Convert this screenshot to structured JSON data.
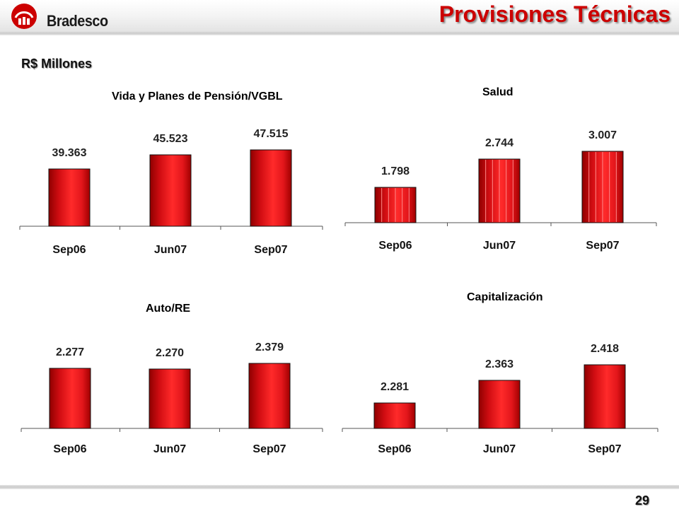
{
  "header": {
    "brand": "Bradesco",
    "title": "Provisiones Técnicas",
    "units": "R$ Millones"
  },
  "footer": {
    "page_number": "29"
  },
  "colors": {
    "bar": "#e3161b",
    "bar_dark": "#a00000",
    "title": "#cc0000"
  },
  "chart_data": [
    {
      "type": "bar",
      "title": "Vida y Planes de Pensión/VGBL",
      "categories": [
        "Sep06",
        "Jun07",
        "Sep07"
      ],
      "values": [
        39363,
        45523,
        47515
      ],
      "value_labels": [
        "39.363",
        "45.523",
        "47.515"
      ],
      "style": "plain",
      "grid": false
    },
    {
      "type": "bar",
      "title": "Salud",
      "categories": [
        "Sep06",
        "Jun07",
        "Sep07"
      ],
      "values": [
        1798,
        2744,
        3007
      ],
      "value_labels": [
        "1.798",
        "2.744",
        "3.007"
      ],
      "style": "striped",
      "grid": false
    },
    {
      "type": "bar",
      "title": "Auto/RE",
      "categories": [
        "Sep06",
        "Jun07",
        "Sep07"
      ],
      "values": [
        2277,
        2270,
        2379
      ],
      "value_labels": [
        "2.277",
        "2.270",
        "2.379"
      ],
      "style": "plain",
      "grid": false
    },
    {
      "type": "bar",
      "title": "Capitalización",
      "categories": [
        "Sep06",
        "Jun07",
        "Sep07"
      ],
      "values": [
        2281,
        2363,
        2418
      ],
      "value_labels": [
        "2.281",
        "2.363",
        "2.418"
      ],
      "style": "plain",
      "grid": false
    }
  ]
}
